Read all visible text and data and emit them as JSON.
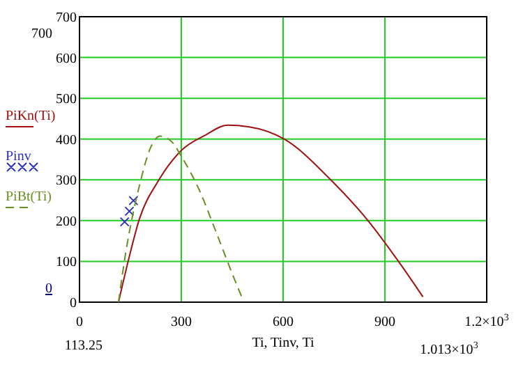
{
  "chart_data": {
    "type": "line",
    "xlabel": "Ti, Tinv, Ti",
    "xlim": [
      0,
      1200
    ],
    "ylim": [
      0,
      700
    ],
    "xticks": [
      0,
      300,
      600,
      900,
      {
        "value": 1200,
        "label": "1.2×10$^{3}$"
      }
    ],
    "yticks": [
      0,
      100,
      200,
      300,
      400,
      500,
      600,
      700
    ],
    "grid": true,
    "legend": "left",
    "annotations": [
      "700",
      "0",
      "113.25",
      "1.013×10$^{3}$"
    ],
    "series": [
      {
        "name": "PiKn(Ti)",
        "color": "#a01010",
        "line_style": "solid",
        "x": [
          115,
          143,
          177,
          232,
          300,
          372,
          436,
          500,
          603,
          744,
          855,
          940,
          1012
        ],
        "values": [
          0,
          99,
          205,
          297,
          372,
          410,
          434,
          430,
          400,
          297,
          195,
          100,
          13
        ]
      },
      {
        "name": "Pinv",
        "type": "scatter",
        "marker": "cross",
        "color": "#3030c0",
        "x": [
          133,
          147,
          159
        ],
        "values": [
          197,
          223,
          249
        ]
      },
      {
        "name": "PiBt(Ti)",
        "color": "#6b8e23",
        "line_style": "dashed",
        "x": [
          115,
          136,
          177,
          210,
          238,
          270,
          300,
          354,
          403,
          451,
          478
        ],
        "values": [
          0,
          120,
          287,
          380,
          407,
          395,
          358,
          273,
          171,
          68,
          13
        ]
      }
    ]
  }
}
